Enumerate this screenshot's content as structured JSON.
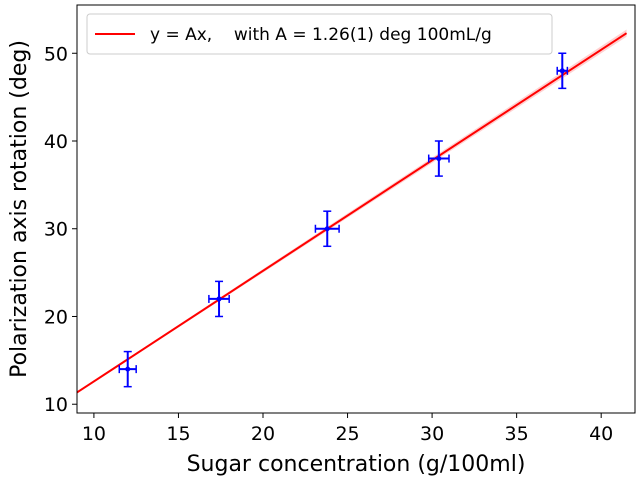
{
  "chart_data": {
    "type": "scatter",
    "xlabel": "Sugar concentration (g/100ml)",
    "ylabel": "Polarization axis rotation (deg)",
    "xlim": [
      9,
      42
    ],
    "ylim": [
      9,
      55.5
    ],
    "x_ticks": [
      10,
      15,
      20,
      25,
      30,
      35,
      40
    ],
    "y_ticks": [
      10,
      20,
      30,
      40,
      50
    ],
    "grid": false,
    "legend_position": "upper-left",
    "points": [
      {
        "x": 12.0,
        "y": 14,
        "xerr": 0.5,
        "yerr": 2
      },
      {
        "x": 17.4,
        "y": 22,
        "xerr": 0.6,
        "yerr": 2
      },
      {
        "x": 23.8,
        "y": 30,
        "xerr": 0.7,
        "yerr": 2
      },
      {
        "x": 30.4,
        "y": 38,
        "xerr": 0.6,
        "yerr": 2
      },
      {
        "x": 37.7,
        "y": 48,
        "xerr": 0.3,
        "yerr": 2
      }
    ],
    "fit": {
      "label": "y = Ax,    with A = 1.26(1) deg 100mL/g",
      "slope": 1.26,
      "x_range": [
        9,
        41.5
      ]
    },
    "colors": {
      "points": "#0000ff",
      "fit": "#ff0000",
      "band": "#ffb3b3"
    }
  }
}
